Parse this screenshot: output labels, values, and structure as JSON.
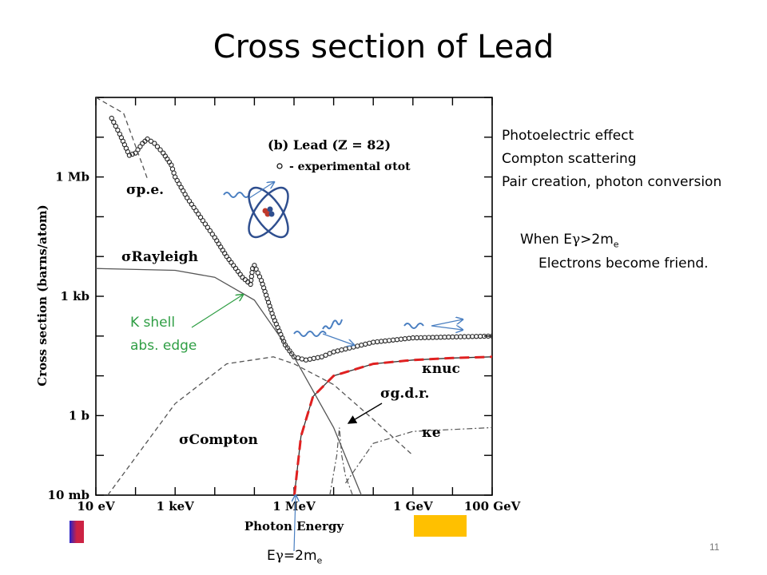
{
  "slide": {
    "title": "Cross section of Lead",
    "page_number": "11"
  },
  "notes": {
    "processes": [
      "Photoelectric effect",
      "Compton scattering",
      "Pair creation, photon conversion"
    ],
    "threshold_prefix": "When E",
    "threshold_gamma": "γ",
    "threshold_mid": ">2m",
    "threshold_sub": "e",
    "friend": "Electrons become friend.",
    "kshell_1": "K shell",
    "kshell_2": "abs. edge",
    "bottom_prefix": "E",
    "bottom_gamma": "γ",
    "bottom_mid": "=2m",
    "bottom_sub": "e"
  },
  "chart_data": {
    "type": "line",
    "title": "(b) Lead (Z = 82)",
    "legend_marker_label": "- experimental σtot",
    "xlabel": "Photon Energy",
    "ylabel": "Cross section  (barns/atom)",
    "x_scale": "log",
    "y_scale": "log",
    "xlim_eV": [
      10,
      100000000000.0
    ],
    "ylim_barns": [
      0.01,
      100000000.0
    ],
    "x_tick_labels": [
      {
        "label": "10 eV",
        "value": 10
      },
      {
        "label": "1 keV",
        "value": 1000
      },
      {
        "label": "1 MeV",
        "value": 1000000
      },
      {
        "label": "1 GeV",
        "value": 1000000000
      },
      {
        "label": "100 GeV",
        "value": 100000000000
      }
    ],
    "y_tick_labels": [
      {
        "label": "10 mb",
        "value": 0.01
      },
      {
        "label": "1 b",
        "value": 1
      },
      {
        "label": "1 kb",
        "value": 1000
      },
      {
        "label": "1 Mb",
        "value": 1000000
      }
    ],
    "series": [
      {
        "name": "σtot experimental",
        "style": "circles",
        "x": [
          25,
          40,
          70,
          100,
          150,
          200,
          300,
          500,
          800,
          1000,
          2000,
          5000,
          10000,
          20000,
          50000,
          80000,
          90000,
          100000,
          150000,
          300000,
          600000,
          1000000,
          2000000,
          5000000,
          10000000,
          100000000,
          1000000000,
          10000000000,
          100000000000
        ],
        "y": [
          30000000,
          12000000,
          3500000,
          4000000,
          7000000,
          9000000,
          7000000,
          4000000,
          2000000,
          1000000,
          300000,
          80000,
          30000,
          10000,
          3000,
          2000,
          5000,
          6000,
          2500,
          300,
          60,
          30,
          25,
          30,
          40,
          70,
          90,
          95,
          100
        ]
      },
      {
        "name": "σp.e.",
        "style": "dashed",
        "x": [
          10,
          50,
          100,
          150,
          200
        ],
        "y": [
          100000000,
          40000000,
          6000000,
          2000000,
          900000
        ]
      },
      {
        "name": "σRayleigh",
        "style": "solid",
        "x": [
          10,
          1000,
          10000,
          100000,
          1000000,
          10000000,
          50000000
        ],
        "y": [
          5000,
          4500,
          3000,
          800,
          30,
          0.5,
          0.01
        ]
      },
      {
        "name": "σCompton",
        "style": "dashed",
        "x": [
          20,
          1000,
          20000,
          300000,
          1000000,
          10000000,
          100000000,
          1000000000
        ],
        "y": [
          0.01,
          2,
          20,
          30,
          20,
          6,
          0.8,
          0.1
        ]
      },
      {
        "name": "κnuc",
        "style": "solid-red-dashed",
        "x": [
          1022000,
          1500000,
          3000000,
          10000000,
          100000000,
          1000000000,
          10000000000,
          100000000000
        ],
        "y": [
          0.01,
          0.3,
          3,
          10,
          20,
          25,
          28,
          30
        ]
      },
      {
        "name": "σg.d.r.",
        "style": "dash-dot",
        "x": [
          8000000,
          12000000,
          14000000,
          16000000,
          20000000,
          30000000
        ],
        "y": [
          0.01,
          0.1,
          0.5,
          0.1,
          0.03,
          0.01
        ]
      },
      {
        "name": "κe",
        "style": "dash-dot",
        "x": [
          20000000,
          100000000,
          1000000000,
          100000000000
        ],
        "y": [
          0.02,
          0.2,
          0.4,
          0.5
        ]
      }
    ],
    "annotations": [
      "σp.e.",
      "σRayleigh",
      "σCompton",
      "κnuc",
      "σg.d.r.",
      "κe"
    ],
    "grid": false,
    "legend": "top-center"
  }
}
